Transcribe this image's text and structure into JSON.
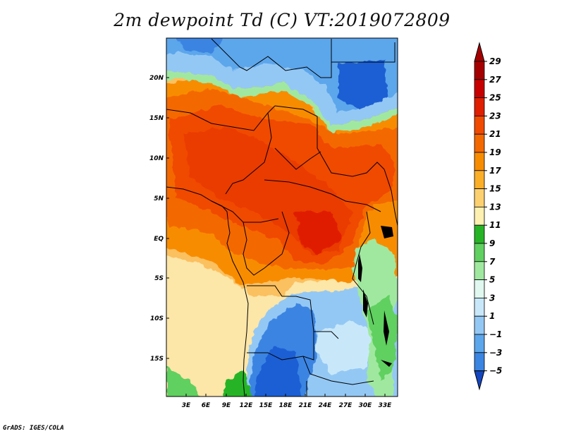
{
  "title": "2m dewpoint Td (C) VT:2019072809",
  "credit": "GrADS: IGES/COLA",
  "map": {
    "lat_labels": [
      "20N",
      "15N",
      "10N",
      "5N",
      "EQ",
      "5S",
      "10S",
      "15S"
    ],
    "lon_labels": [
      "3E",
      "6E",
      "9E",
      "12E",
      "15E",
      "18E",
      "21E",
      "24E",
      "27E",
      "30E",
      "33E"
    ]
  },
  "colorbar": {
    "levels": [
      "29",
      "27",
      "25",
      "23",
      "21",
      "19",
      "17",
      "15",
      "13",
      "11",
      "9",
      "7",
      "5",
      "3",
      "1",
      "−1",
      "−3",
      "−5"
    ],
    "colors": [
      "#a50000",
      "#c80000",
      "#e01e00",
      "#f04a00",
      "#f46800",
      "#f88c00",
      "#fbae28",
      "#fcd070",
      "#fdf0b0",
      "#26b426",
      "#60d060",
      "#a0e8a0",
      "#e0f8f0",
      "#c8e8fa",
      "#94c8f4",
      "#5ca6ec",
      "#3a84e2",
      "#1c5ed4",
      "#1446c0"
    ],
    "top_color": "#a50000",
    "bottom_color": "#1446c0"
  }
}
